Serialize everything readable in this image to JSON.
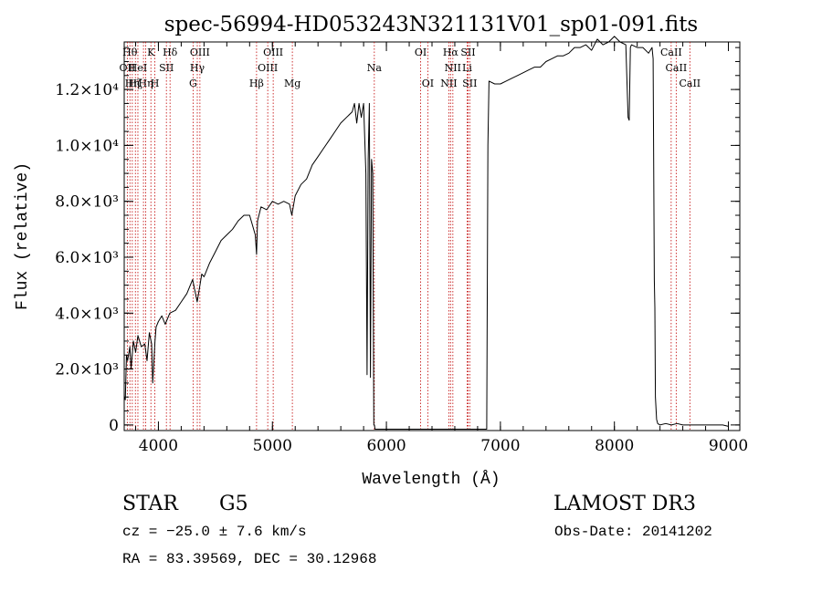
{
  "chart_data": {
    "type": "line",
    "title": "spec-56994-HD053243N321131V01_sp01-091.fits",
    "xlabel": "Wavelength (Å)",
    "ylabel": "Flux (relative)",
    "xlim": [
      3700,
      9100
    ],
    "ylim": [
      -200,
      13700
    ],
    "x_ticks": [
      {
        "value": 4000,
        "label": "4000"
      },
      {
        "value": 5000,
        "label": "5000"
      },
      {
        "value": 6000,
        "label": "6000"
      },
      {
        "value": 7000,
        "label": "7000"
      },
      {
        "value": 8000,
        "label": "8000"
      },
      {
        "value": 9000,
        "label": "9000"
      }
    ],
    "y_ticks": [
      {
        "value": 0,
        "label": "0"
      },
      {
        "value": 2000,
        "label": "2.0×10³"
      },
      {
        "value": 4000,
        "label": "4.0×10³"
      },
      {
        "value": 6000,
        "label": "6.0×10³"
      },
      {
        "value": 8000,
        "label": "8.0×10³"
      },
      {
        "value": 10000,
        "label": "1.0×10⁴"
      },
      {
        "value": 12000,
        "label": "1.2×10⁴"
      }
    ],
    "series": [
      {
        "name": "flux",
        "x": [
          3700,
          3710,
          3720,
          3730,
          3750,
          3760,
          3780,
          3800,
          3820,
          3850,
          3880,
          3900,
          3920,
          3940,
          3950,
          3970,
          3980,
          4000,
          4030,
          4060,
          4100,
          4150,
          4200,
          4250,
          4300,
          4340,
          4380,
          4400,
          4450,
          4500,
          4550,
          4600,
          4650,
          4700,
          4750,
          4800,
          4850,
          4861,
          4870,
          4900,
          4950,
          5000,
          5050,
          5100,
          5150,
          5170,
          5200,
          5250,
          5300,
          5350,
          5400,
          5450,
          5500,
          5550,
          5600,
          5650,
          5700,
          5720,
          5740,
          5760,
          5780,
          5800,
          5810,
          5820,
          5830,
          5840,
          5850,
          5860,
          5870,
          5880,
          5890,
          5895,
          5900,
          6000,
          6100,
          6200,
          6300,
          6400,
          6500,
          6600,
          6700,
          6800,
          6880,
          6890,
          6900,
          6950,
          7000,
          7050,
          7100,
          7150,
          7200,
          7250,
          7300,
          7350,
          7400,
          7450,
          7500,
          7550,
          7600,
          7650,
          7700,
          7750,
          7800,
          7850,
          7900,
          7950,
          8000,
          8050,
          8100,
          8120,
          8130,
          8140,
          8150,
          8200,
          8250,
          8300,
          8330,
          8340,
          8350,
          8355,
          8360,
          8370,
          8380,
          8400,
          8450,
          8500,
          8550,
          8600,
          8650,
          8700,
          8750,
          8800,
          8850,
          8900,
          8950,
          9000
        ],
        "y": [
          1000,
          900,
          2500,
          2300,
          2800,
          2000,
          3000,
          2600,
          3200,
          2800,
          2900,
          2300,
          3300,
          2900,
          1500,
          3000,
          3500,
          3700,
          3900,
          3600,
          4000,
          4100,
          4400,
          4700,
          5200,
          4400,
          5400,
          5300,
          5800,
          6200,
          6600,
          6800,
          7000,
          7300,
          7500,
          7500,
          6800,
          6100,
          7300,
          7800,
          7700,
          8000,
          7900,
          8000,
          7900,
          7500,
          8200,
          8600,
          8800,
          9300,
          9600,
          9900,
          10200,
          10500,
          10800,
          11000,
          11200,
          11500,
          10800,
          11500,
          11000,
          11500,
          10200,
          9000,
          1800,
          9500,
          11500,
          1700,
          9500,
          9000,
          0,
          0,
          -150,
          -150,
          -150,
          -150,
          -150,
          -150,
          -150,
          -150,
          -150,
          -150,
          -150,
          10000,
          12300,
          12200,
          12200,
          12300,
          12400,
          12500,
          12600,
          12700,
          12800,
          12800,
          13000,
          13100,
          13200,
          13200,
          13300,
          13500,
          13500,
          13600,
          13400,
          13800,
          13600,
          13700,
          13900,
          13700,
          13600,
          11000,
          10900,
          13500,
          13600,
          13500,
          13500,
          13300,
          13500,
          13100,
          5200,
          4200,
          1000,
          200,
          50,
          0,
          50,
          0,
          50,
          0,
          0,
          0,
          0,
          0,
          0,
          0,
          0,
          -50
        ]
      }
    ],
    "line_markers": [
      {
        "wavelength": 3727,
        "label": "OII",
        "row": 2
      },
      {
        "wavelength": 3750,
        "label": "Hθ",
        "row": 1
      },
      {
        "wavelength": 3771,
        "label": "Hη",
        "row": 3
      },
      {
        "wavelength": 3798,
        "label": "Hζ",
        "row": 3
      },
      {
        "wavelength": 3820,
        "label": "HeI",
        "row": 2
      },
      {
        "wavelength": 3869,
        "label": "",
        "row": 3
      },
      {
        "wavelength": 3889,
        "label": "Hη",
        "row": 3
      },
      {
        "wavelength": 3934,
        "label": "K",
        "row": 1
      },
      {
        "wavelength": 3969,
        "label": "H",
        "row": 3
      },
      {
        "wavelength": 4070,
        "label": "SII",
        "row": 2
      },
      {
        "wavelength": 4102,
        "label": "Hδ",
        "row": 1
      },
      {
        "wavelength": 4304,
        "label": "G",
        "row": 3
      },
      {
        "wavelength": 4341,
        "label": "Hγ",
        "row": 2
      },
      {
        "wavelength": 4364,
        "label": "OIII",
        "row": 1
      },
      {
        "wavelength": 4861,
        "label": "Hβ",
        "row": 3
      },
      {
        "wavelength": 4959,
        "label": "OIII",
        "row": 2
      },
      {
        "wavelength": 5007,
        "label": "OIII",
        "row": 1
      },
      {
        "wavelength": 5175,
        "label": "Mg",
        "row": 3
      },
      {
        "wavelength": 5894,
        "label": "Na",
        "row": 2
      },
      {
        "wavelength": 6300,
        "label": "OI",
        "row": 1
      },
      {
        "wavelength": 6363,
        "label": "OI",
        "row": 3
      },
      {
        "wavelength": 6548,
        "label": "NII",
        "row": 3
      },
      {
        "wavelength": 6563,
        "label": "Hα",
        "row": 1
      },
      {
        "wavelength": 6583,
        "label": "NII",
        "row": 2
      },
      {
        "wavelength": 6708,
        "label": "Li",
        "row": 2
      },
      {
        "wavelength": 6716,
        "label": "SII",
        "row": 1
      },
      {
        "wavelength": 6731,
        "label": "SII",
        "row": 3
      },
      {
        "wavelength": 8498,
        "label": "CaII",
        "row": 1
      },
      {
        "wavelength": 8542,
        "label": "CaII",
        "row": 2
      },
      {
        "wavelength": 8662,
        "label": "CaII",
        "row": 3
      }
    ],
    "grid": false,
    "legend": "none"
  },
  "info": {
    "class_label": "STAR",
    "subclass": "G5",
    "survey": "LAMOST DR3",
    "redshift_line": "cz = −25.0 ± 7.6 km/s",
    "obs_date": "Obs-Date: 20141202",
    "coords": "RA =  83.39569, DEC =  30.12968"
  },
  "colors": {
    "axis": "#000000",
    "spectrum": "#000000",
    "line_marker": "#c00000",
    "background": "#ffffff"
  }
}
